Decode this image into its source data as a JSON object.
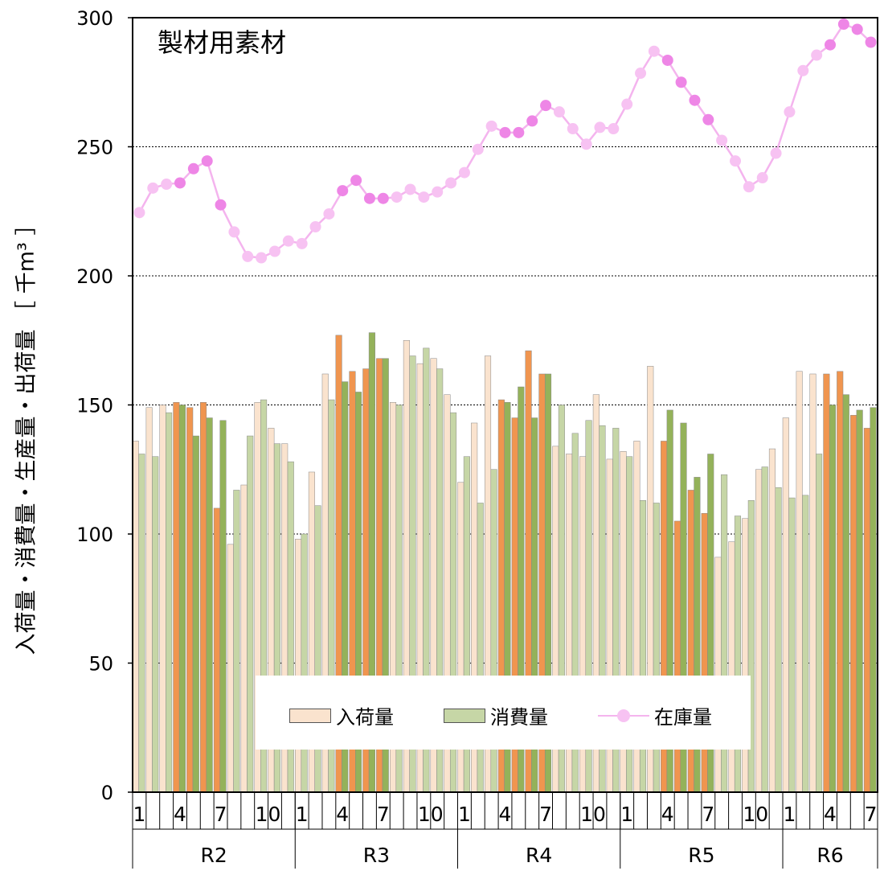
{
  "chart_data": {
    "type": "bar",
    "title": "製材用素材",
    "ylabel": "入荷量・消費量・生産量・出荷量 ［ 千m³ ］",
    "ylim": [
      0,
      300
    ],
    "yticks": [
      0,
      50,
      100,
      150,
      200,
      250,
      300
    ],
    "grid": true,
    "legend_position": "bottom-center",
    "month_tick_labels": [
      "1",
      "4",
      "7",
      "10"
    ],
    "groups": [
      {
        "label": "R2",
        "months": 12
      },
      {
        "label": "R3",
        "months": 12
      },
      {
        "label": "R4",
        "months": 12
      },
      {
        "label": "R5",
        "months": 12
      },
      {
        "label": "R6",
        "months": 7
      }
    ],
    "months": [
      "R2-1",
      "R2-2",
      "R2-3",
      "R2-4",
      "R2-5",
      "R2-6",
      "R2-7",
      "R2-8",
      "R2-9",
      "R2-10",
      "R2-11",
      "R2-12",
      "R3-1",
      "R3-2",
      "R3-3",
      "R3-4",
      "R3-5",
      "R3-6",
      "R3-7",
      "R3-8",
      "R3-9",
      "R3-10",
      "R3-11",
      "R3-12",
      "R4-1",
      "R4-2",
      "R4-3",
      "R4-4",
      "R4-5",
      "R4-6",
      "R4-7",
      "R4-8",
      "R4-9",
      "R4-10",
      "R4-11",
      "R4-12",
      "R5-1",
      "R5-2",
      "R5-3",
      "R5-4",
      "R5-5",
      "R5-6",
      "R5-7",
      "R5-8",
      "R5-9",
      "R5-10",
      "R5-11",
      "R5-12",
      "R6-1",
      "R6-2",
      "R6-3",
      "R6-4",
      "R6-5",
      "R6-6",
      "R6-7"
    ],
    "series": [
      {
        "name": "入荷量",
        "kind": "bar",
        "values": [
          136,
          149,
          150,
          151,
          149,
          151,
          110,
          96,
          119,
          151,
          141,
          135,
          98,
          124,
          162,
          177,
          163,
          164,
          168,
          151,
          175,
          166,
          168,
          154,
          120,
          143,
          169,
          152,
          145,
          171,
          162,
          134,
          131,
          130,
          154,
          129,
          132,
          136,
          165,
          136,
          105,
          117,
          108,
          91,
          97,
          106,
          125,
          133,
          145,
          163,
          162,
          162,
          163,
          146,
          141
        ]
      },
      {
        "name": "消費量",
        "kind": "bar",
        "values": [
          131,
          130,
          147,
          150,
          138,
          145,
          144,
          117,
          138,
          152,
          135,
          128,
          100,
          111,
          152,
          159,
          155,
          178,
          168,
          150,
          169,
          172,
          164,
          147,
          130,
          112,
          125,
          151,
          157,
          145,
          162,
          150,
          139,
          144,
          142,
          141,
          130,
          113,
          112,
          148,
          143,
          122,
          131,
          123,
          107,
          113,
          126,
          118,
          114,
          115,
          131,
          150,
          154,
          148,
          149
        ]
      },
      {
        "name": "在庫量",
        "kind": "line",
        "values": [
          224.5,
          234,
          235.5,
          236,
          241.5,
          244.5,
          227.5,
          217,
          207.5,
          207,
          209.5,
          213.5,
          212.5,
          219,
          224,
          233,
          237,
          230,
          230,
          230.5,
          233.5,
          230.5,
          232.5,
          236,
          240,
          249,
          258,
          255.5,
          255.5,
          260,
          266,
          263.5,
          257,
          251,
          257.5,
          257,
          266.5,
          278.5,
          287,
          283.5,
          275,
          268,
          260.5,
          252.5,
          244.5,
          234.5,
          238,
          247.5,
          263.5,
          279.5,
          285.5,
          289.5,
          297.5,
          295.5,
          290.5
        ]
      }
    ],
    "colors": {
      "inflow_light": "#FAE3CE",
      "inflow_dark": "#F0954F",
      "consumption_light": "#C6D6A6",
      "consumption_dark": "#94B25A",
      "stock_light": "#F7C2F2",
      "stock_dark": "#EE86E6",
      "stock_line": "#F4B4EE"
    }
  }
}
